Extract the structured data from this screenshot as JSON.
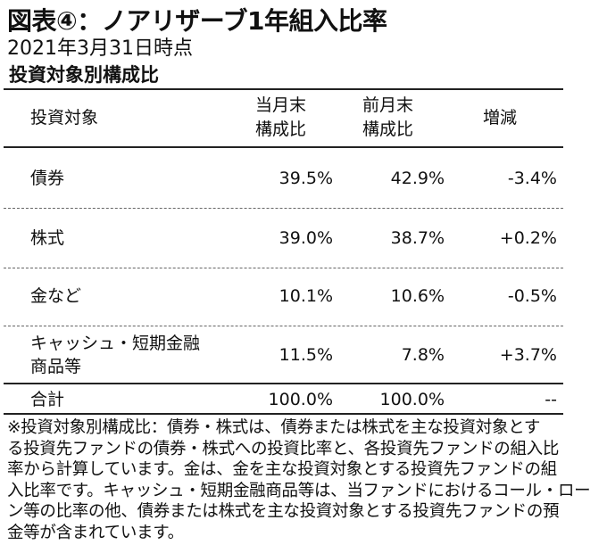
{
  "title": "図表④：ノアリザーブ1年組入比率",
  "date": "2021年3月31日時点",
  "section": "投資対象別構成比",
  "table": {
    "headers": {
      "category": "投資対象",
      "current_line1": "当月末",
      "current_line2": "構成比",
      "previous_line1": "前月末",
      "previous_line2": "構成比",
      "change": "増減"
    },
    "rows": [
      {
        "category": "債券",
        "current": "39.5%",
        "previous": "42.9%",
        "change": "-3.4%"
      },
      {
        "category": "株式",
        "current": "39.0%",
        "previous": "38.7%",
        "change": "+0.2%"
      },
      {
        "category": "金など",
        "current": "10.1%",
        "previous": "10.6%",
        "change": "-0.5%"
      },
      {
        "category_line1": "キャッシュ・短期金融",
        "category_line2": "商品等",
        "current": "11.5%",
        "previous": "7.8%",
        "change": "+3.7%"
      }
    ],
    "total": {
      "category": "合計",
      "current": "100.0%",
      "previous": "100.0%",
      "change": "--"
    }
  },
  "note_lines": [
    "※投資対象別構成比：債券・株式は、債券または株式を主な投資対象とす",
    "る投資先ファンドの債券・株式への投資比率と、各投資先ファンドの組入比",
    "率から計算しています。金は、金を主な投資対象とする投資先ファンドの組",
    "入比率です。キャッシュ・短期金融商品等は、当ファンドにおけるコール・ロー",
    "ン等の比率の他、債券または株式を主な投資対象とする投資先ファンドの預",
    "金等が含まれています。"
  ]
}
